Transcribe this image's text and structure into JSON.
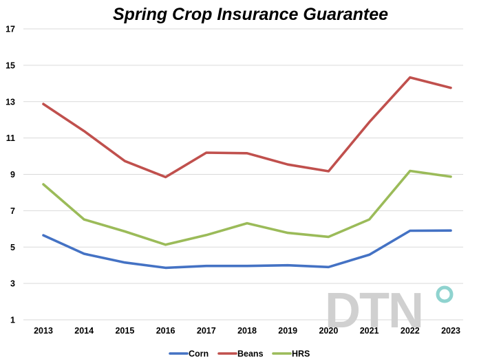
{
  "chart_data": {
    "type": "line",
    "title": "Spring Crop Insurance Guarantee",
    "xlabel": "",
    "ylabel": "",
    "categories": [
      "2013",
      "2014",
      "2015",
      "2016",
      "2017",
      "2018",
      "2019",
      "2020",
      "2021",
      "2022",
      "2023"
    ],
    "ylim": [
      1,
      17
    ],
    "yticks": [
      1,
      3,
      5,
      7,
      9,
      11,
      13,
      15,
      17
    ],
    "grid": true,
    "legend_position": "bottom",
    "series": [
      {
        "name": "Corn",
        "color": "#4472c4",
        "values": [
          5.65,
          4.63,
          4.15,
          3.86,
          3.96,
          3.96,
          4.0,
          3.9,
          4.58,
          5.9,
          5.91
        ]
      },
      {
        "name": "Beans",
        "color": "#c0504d",
        "values": [
          12.87,
          11.38,
          9.73,
          8.85,
          10.19,
          10.16,
          9.54,
          9.17,
          11.87,
          14.33,
          13.76
        ]
      },
      {
        "name": "HRS",
        "color": "#9bbb59",
        "values": [
          8.45,
          6.52,
          5.86,
          5.13,
          5.66,
          6.31,
          5.78,
          5.56,
          6.52,
          9.19,
          8.87
        ]
      }
    ]
  },
  "logo": {
    "text": "DTN",
    "ring_color": "#8fd3cf"
  }
}
